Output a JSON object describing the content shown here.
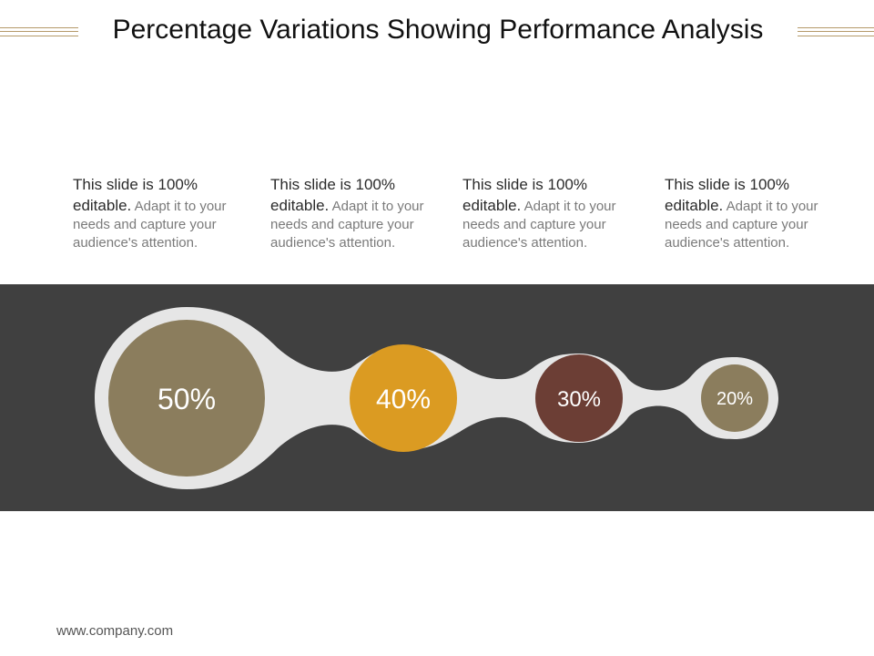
{
  "title": "Percentage Variations Showing Performance Analysis",
  "items": [
    {
      "lead": "This slide is 100% editable.",
      "body": "Adapt it to your needs and capture your audience's attention.",
      "percent": "50%",
      "value": 50,
      "color": "#8b7d5d"
    },
    {
      "lead": "This slide is 100% editable.",
      "body": "Adapt it to your needs and capture your audience's attention.",
      "percent": "40%",
      "value": 40,
      "color": "#db9b22"
    },
    {
      "lead": "This slide is 100% editable.",
      "body": "Adapt it to your needs and capture your audience's attention.",
      "percent": "30%",
      "value": 30,
      "color": "#6c3e35"
    },
    {
      "lead": "This slide is 100% editable.",
      "body": "Adapt it to your needs and capture your audience's attention.",
      "percent": "20%",
      "value": 20,
      "color": "#8b7d5d"
    }
  ],
  "colors": {
    "band": "#404040",
    "connector": "#e6e6e6",
    "rule": "#b59a6a"
  },
  "footer": "www.company.com"
}
